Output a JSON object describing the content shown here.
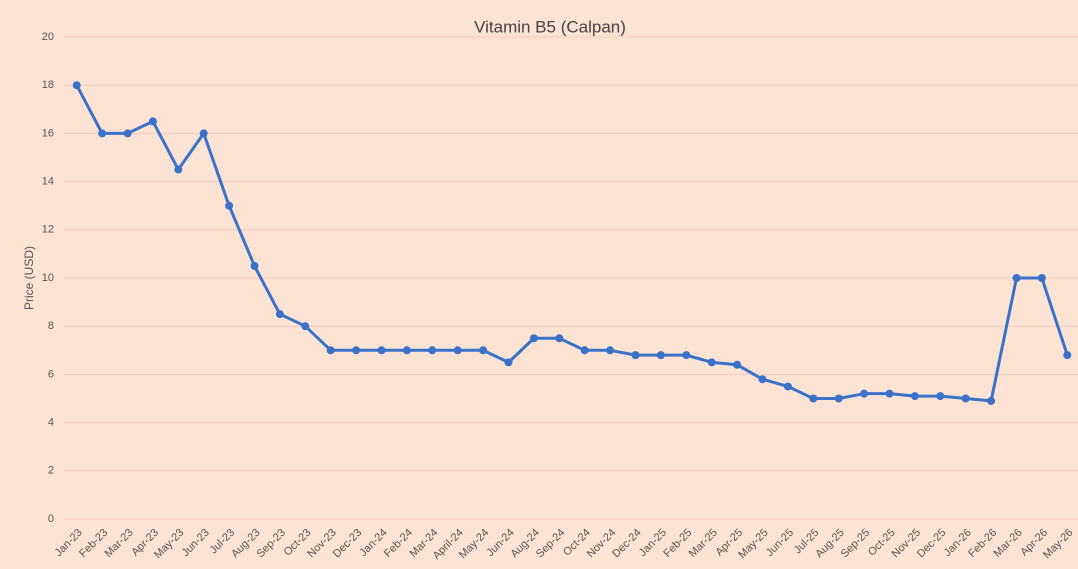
{
  "chart_data": {
    "type": "line",
    "title": "Vitamin B5 (Calpan)",
    "y_label": "Price (USD)",
    "categories": [
      "Jan-23",
      "Feb-23",
      "Mar-23",
      "Apr-23",
      "May-23",
      "Jun-23",
      "Jul-23",
      "Aug-23",
      "Sep-23",
      "Oct-23",
      "Nov-23",
      "Dec-23",
      "Jan-24",
      "Feb-24",
      "Mar-24",
      "April-24",
      "May-24",
      "Jun-24",
      "Aug-24",
      "Sep-24",
      "Oct-24",
      "Nov-24",
      "Dec-24",
      "Jan-25",
      "Feb-25",
      "Mar-25",
      "Apr-25",
      "May-25",
      "Jun-25",
      "Jul-25",
      "Aug-25",
      "Sep-25",
      "Oct-25",
      "Nov-25",
      "Dec-25",
      "Jan-26",
      "Feb-26",
      "Mar-26",
      "Apr-26",
      "May-26"
    ],
    "values": [
      18,
      16,
      16,
      16.5,
      14.5,
      16,
      13,
      10.5,
      8.5,
      8,
      7,
      7,
      7,
      7,
      7,
      7,
      7,
      6.5,
      7.5,
      7.5,
      7,
      7,
      6.8,
      6.8,
      6.8,
      6.5,
      6.4,
      5.8,
      5.5,
      5,
      5,
      5.2,
      5.2,
      5.1,
      5.1,
      5,
      4.9,
      10,
      10,
      6.8
    ],
    "color": "#3a72c9",
    "ylim": [
      0,
      20
    ],
    "yticks": [
      0,
      2,
      4,
      6,
      8,
      10,
      12,
      14,
      16,
      18,
      20
    ],
    "grid": true
  }
}
